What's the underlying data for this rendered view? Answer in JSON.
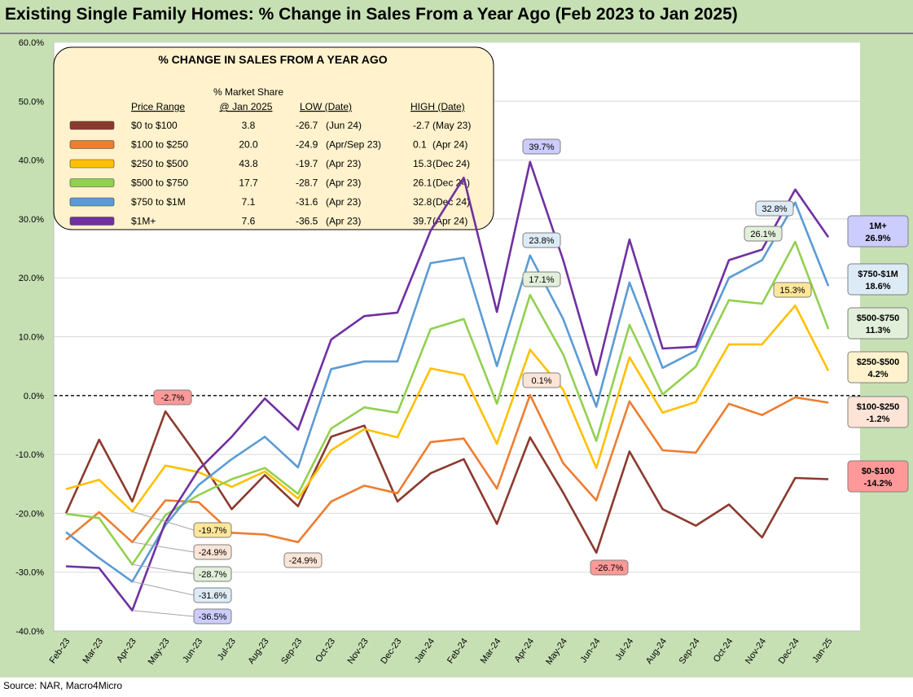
{
  "title": "Existing Single Family Homes: % Change in Sales From a Year Ago (Feb 2023 to Jan 2025)",
  "source": "Source: NAR, Macro4Micro",
  "chart_data": {
    "type": "line",
    "categories": [
      "Feb-23",
      "Mar-23",
      "Apr-23",
      "May-23",
      "Jun-23",
      "Jul-23",
      "Aug-23",
      "Sep-23",
      "Oct-23",
      "Nov-23",
      "Dec-23",
      "Jan-24",
      "Feb-24",
      "Mar-24",
      "Apr-24",
      "May-24",
      "Jun-24",
      "Jul-24",
      "Aug-24",
      "Sep-24",
      "Oct-24",
      "Nov-24",
      "Dec-24",
      "Jan-25"
    ],
    "ylim": [
      -40,
      60
    ],
    "yticks": [
      "-40.0%",
      "-30.0%",
      "-20.0%",
      "-10.0%",
      "0.0%",
      "10.0%",
      "20.0%",
      "30.0%",
      "40.0%",
      "50.0%",
      "60.0%"
    ],
    "ytick_values": [
      -40,
      -30,
      -20,
      -10,
      0,
      10,
      20,
      30,
      40,
      50,
      60
    ],
    "series": [
      {
        "name": "$0 to $100",
        "color": "#8b3a2e",
        "values": [
          -20,
          -7.5,
          -18,
          -2.7,
          -10.5,
          -19.3,
          -13.5,
          -18.8,
          -7,
          -5.1,
          -18,
          -13.2,
          -10.8,
          -21.8,
          -7.1,
          -16.5,
          -26.7,
          -9.5,
          -19.3,
          -22.1,
          -18.5,
          -24.1,
          -14,
          -14.2
        ]
      },
      {
        "name": "$100 to $250",
        "color": "#ed7d31",
        "values": [
          -24.5,
          -19.8,
          -24.9,
          -17.8,
          -18.1,
          -23.3,
          -23.6,
          -24.9,
          -18,
          -15.3,
          -16.6,
          -7.9,
          -7.3,
          -15.8,
          0.1,
          -11.5,
          -17.8,
          -1,
          -9.3,
          -9.7,
          -1.4,
          -3.3,
          -0.3,
          -1.2
        ]
      },
      {
        "name": "$250 to $500",
        "color": "#ffc000",
        "values": [
          -15.9,
          -14.3,
          -19.7,
          -11.9,
          -13,
          -15.5,
          -12.9,
          -17.5,
          -9.3,
          -5.7,
          -7.1,
          4.6,
          3.5,
          -8.2,
          7.8,
          1,
          -12.3,
          6.5,
          -2.9,
          -1.1,
          8.7,
          8.7,
          15.3,
          4.2
        ]
      },
      {
        "name": "$500 to $750",
        "color": "#92d050",
        "values": [
          -20.1,
          -20.8,
          -28.7,
          -20.3,
          -16.9,
          -14.2,
          -12.3,
          -16.7,
          -5.6,
          -2,
          -2.9,
          11.3,
          13,
          -1.4,
          17.1,
          7,
          -7.7,
          12,
          0.2,
          4.9,
          16.2,
          15.6,
          26.1,
          11.3
        ]
      },
      {
        "name": "$750 to $1M",
        "color": "#5b9bd5",
        "values": [
          -23.2,
          -27.6,
          -31.6,
          -22,
          -15.2,
          -10.8,
          -7,
          -12.2,
          4.5,
          5.8,
          5.8,
          22.5,
          23.4,
          5,
          23.8,
          13,
          -1.9,
          19.2,
          4.7,
          7.6,
          20,
          23,
          32.8,
          18.6
        ]
      },
      {
        "name": "$1M+",
        "color": "#7030a0",
        "values": [
          -29,
          -29.3,
          -36.5,
          -21.5,
          -12.6,
          -7,
          -0.5,
          -5.8,
          9.5,
          13.5,
          14.1,
          28,
          37,
          14.2,
          39.7,
          23,
          3.5,
          26.5,
          8,
          8.3,
          23,
          24.8,
          35,
          26.9
        ]
      }
    ],
    "legend": {
      "title": "% CHANGE IN SALES FROM A YEAR AGO",
      "header_share": "% Market Share",
      "col_price": "Price Range",
      "col_share": "@ Jan 2025",
      "col_low": "LOW  (Date)",
      "col_high": "HIGH  (Date)",
      "rows": [
        {
          "label": "$0 to $100",
          "share": "3.8",
          "low": "-26.7",
          "low_date": "(Jun 24)",
          "high": "-2.7",
          "high_date": "(May 23)"
        },
        {
          "label": "$100 to $250",
          "share": "20.0",
          "low": "-24.9",
          "low_date": "(Apr/Sep 23)",
          "high": "0.1",
          "high_date": "(Apr 24)"
        },
        {
          "label": "$250 to $500",
          "share": "43.8",
          "low": "-19.7",
          "low_date": "(Apr 23)",
          "high": "15.3",
          "high_date": "(Dec 24)"
        },
        {
          "label": "$500 to $750",
          "share": "17.7",
          "low": "-28.7",
          "low_date": "(Apr 23)",
          "high": "26.1",
          "high_date": "(Dec 24)"
        },
        {
          "label": "$750 to $1M",
          "share": "7.1",
          "low": "-31.6",
          "low_date": "(Apr 23)",
          "high": "32.8",
          "high_date": "(Dec 24)"
        },
        {
          "label": "$1M+",
          "share": "7.6",
          "low": "-36.5",
          "low_date": "(Apr 23)",
          "high": "39.7",
          "high_date": "(Apr 24)"
        }
      ]
    },
    "end_labels": [
      {
        "series": 5,
        "line1": "1M+",
        "line2": "26.9%",
        "value": 26.9,
        "fill": "#ccccff"
      },
      {
        "series": 4,
        "line1": "$750-$1M",
        "line2": "18.6%",
        "value": 18.6,
        "fill": "#ddebf7"
      },
      {
        "series": 3,
        "line1": "$500-$750",
        "line2": "11.3%",
        "value": 11.3,
        "fill": "#e2efda"
      },
      {
        "series": 2,
        "line1": "$250-$500",
        "line2": "4.2%",
        "value": 4.2,
        "fill": "#fff2cc"
      },
      {
        "series": 1,
        "line1": "$100-$250",
        "line2": "-1.2%",
        "value": -1.2,
        "fill": "#fce4d6"
      },
      {
        "series": 0,
        "line1": "$0-$100",
        "line2": "-14.2%",
        "value": -14.2,
        "fill": "#ff9999"
      }
    ],
    "high_labels": [
      {
        "text": "39.7%",
        "fill": "#ccccff"
      },
      {
        "text": "23.8%",
        "fill": "#ddebf7"
      },
      {
        "text": "17.1%",
        "fill": "#e2efda"
      },
      {
        "text": "0.1%",
        "fill": "#fce4d6"
      },
      {
        "text": "32.8%",
        "fill": "#ddebf7"
      },
      {
        "text": "26.1%",
        "fill": "#e2efda"
      },
      {
        "text": "15.3%",
        "fill": "#ffe699"
      },
      {
        "text": "-2.7%",
        "fill": "#ff9999"
      }
    ],
    "low_labels": [
      {
        "text": "-19.7%",
        "fill": "#ffe699"
      },
      {
        "text": "-24.9%",
        "fill": "#fce4d6"
      },
      {
        "text": "-28.7%",
        "fill": "#e2efda"
      },
      {
        "text": "-31.6%",
        "fill": "#ddebf7"
      },
      {
        "text": "-36.5%",
        "fill": "#ccccff"
      },
      {
        "text": "-24.9%",
        "fill": "#fce4d6"
      },
      {
        "text": "-26.7%",
        "fill": "#ff9999"
      }
    ],
    "zero_line": "dashed",
    "grid": "horizontal"
  }
}
